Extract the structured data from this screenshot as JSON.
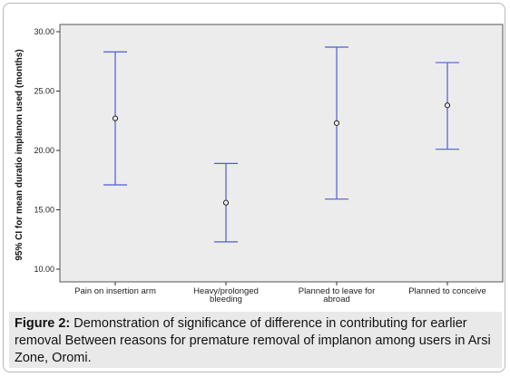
{
  "chart_data": {
    "type": "errorbar",
    "title": "",
    "xlabel": "",
    "ylabel": "95% CI for mean duratio implanon used (months)",
    "ylim": [
      10,
      30
    ],
    "yticks": [
      "10.00",
      "15.00",
      "20.00",
      "25.00",
      "30.00"
    ],
    "grid": false,
    "legend": "none",
    "categories": [
      [
        "Pain on insertion arm"
      ],
      [
        "Heavy/prolonged",
        "bleeding"
      ],
      [
        "Planned to leave for",
        "abroad"
      ],
      [
        "Planned to conceive"
      ]
    ],
    "means": [
      22.7,
      15.6,
      22.3,
      23.8
    ],
    "lower": [
      17.1,
      12.3,
      15.9,
      20.1
    ],
    "upper": [
      28.3,
      18.9,
      28.7,
      27.4
    ],
    "colors": {
      "bar": "#4f5bd5",
      "plot_bg": "#ececec",
      "marker": "#222222"
    }
  },
  "caption": {
    "label": "Figure 2:",
    "text": " Demonstration of significance of difference in contributing for earlier removal Between reasons for premature  removal of implanon among users in Arsi Zone, Oromi."
  }
}
